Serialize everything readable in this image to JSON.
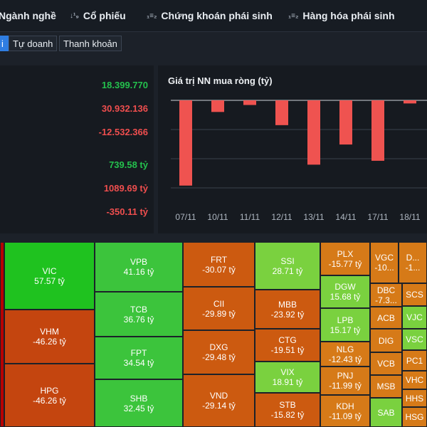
{
  "nav": {
    "items": [
      {
        "label": "Ngành nghề",
        "icon": ""
      },
      {
        "label": "Cổ phiếu",
        "icon": "sort-numeric-icon"
      },
      {
        "label": "Chứng khoán phái sinh",
        "icon": "list-numbered-icon"
      },
      {
        "label": "Hàng hóa phái sinh",
        "icon": "list-numbered-icon"
      }
    ],
    "icon_glyphs": {
      "sort": "↓¹₉",
      "list": "₁≡₂"
    }
  },
  "subtabs": [
    "i",
    "Tự doanh",
    "Thanh khoản"
  ],
  "stats": [
    "18.399.770",
    "30.932.136",
    "-12.532.366",
    "739.58 tỷ",
    "1089.69 tỷ",
    "-350.11 tỷ"
  ],
  "chart_data": {
    "type": "bar",
    "title": "Giá trị NN mua ròng (tỷ)",
    "categories": [
      "07/11",
      "10/11",
      "11/11",
      "12/11",
      "13/11",
      "14/11",
      "17/11",
      "18/11"
    ],
    "values": [
      -550,
      -75,
      -30,
      -160,
      -415,
      -285,
      -390,
      -20
    ],
    "ylim": [
      -650,
      0
    ],
    "bar_color": "#ef5350",
    "grid": true
  },
  "treemap": [
    {
      "sym": "VIC",
      "val": "57.57 tỷ"
    },
    {
      "sym": "VHM",
      "val": "-46.26 tỷ"
    },
    {
      "sym": "HPG",
      "val": "-46.26 tỷ"
    },
    {
      "sym": "VPB",
      "val": "41.16 tỷ"
    },
    {
      "sym": "TCB",
      "val": "36.76 tỷ"
    },
    {
      "sym": "FPT",
      "val": "34.54 tỷ"
    },
    {
      "sym": "SHB",
      "val": "32.45 tỷ"
    },
    {
      "sym": "FRT",
      "val": "-30.07 tỷ"
    },
    {
      "sym": "CII",
      "val": "-29.89 tỷ"
    },
    {
      "sym": "DXG",
      "val": "-29.48 tỷ"
    },
    {
      "sym": "VND",
      "val": "-29.14 tỷ"
    },
    {
      "sym": "SSI",
      "val": "28.71 tỷ"
    },
    {
      "sym": "MBB",
      "val": "-23.92 tỷ"
    },
    {
      "sym": "CTG",
      "val": "-19.51 tỷ"
    },
    {
      "sym": "VIX",
      "val": "18.91 tỷ"
    },
    {
      "sym": "STB",
      "val": "-15.82 tỷ"
    },
    {
      "sym": "PLX",
      "val": "-15.77 tỷ"
    },
    {
      "sym": "DGW",
      "val": "15.68 tỷ"
    },
    {
      "sym": "LPB",
      "val": "15.17 tỷ"
    },
    {
      "sym": "NLG",
      "val": "-12.43 tỷ"
    },
    {
      "sym": "PNJ",
      "val": "-11.99 tỷ"
    },
    {
      "sym": "KDH",
      "val": "-11.09 tỷ"
    },
    {
      "sym": "VGC",
      "val": "-10..."
    },
    {
      "sym": "D...",
      "val": "-1..."
    },
    {
      "sym": "DBC",
      "val": "-7.3..."
    },
    {
      "sym": "ACB",
      "val": ""
    },
    {
      "sym": "DIG",
      "val": ""
    },
    {
      "sym": "VCB",
      "val": ""
    },
    {
      "sym": "MSB",
      "val": ""
    },
    {
      "sym": "SAB",
      "val": ""
    },
    {
      "sym": "SCS",
      "val": ""
    },
    {
      "sym": "VJC",
      "val": ""
    },
    {
      "sym": "VSC",
      "val": ""
    },
    {
      "sym": "PC1",
      "val": ""
    },
    {
      "sym": "VHC",
      "val": ""
    },
    {
      "sym": "HHS",
      "val": ""
    },
    {
      "sym": "HSG",
      "val": ""
    }
  ],
  "colors": {
    "strong_green": "#1fc21f",
    "green": "#3cc43c",
    "light_green": "#7ad13f",
    "orange": "#cc5a10",
    "dark_orange": "#c4450f",
    "amber": "#d67a18",
    "red": "#b80000"
  }
}
